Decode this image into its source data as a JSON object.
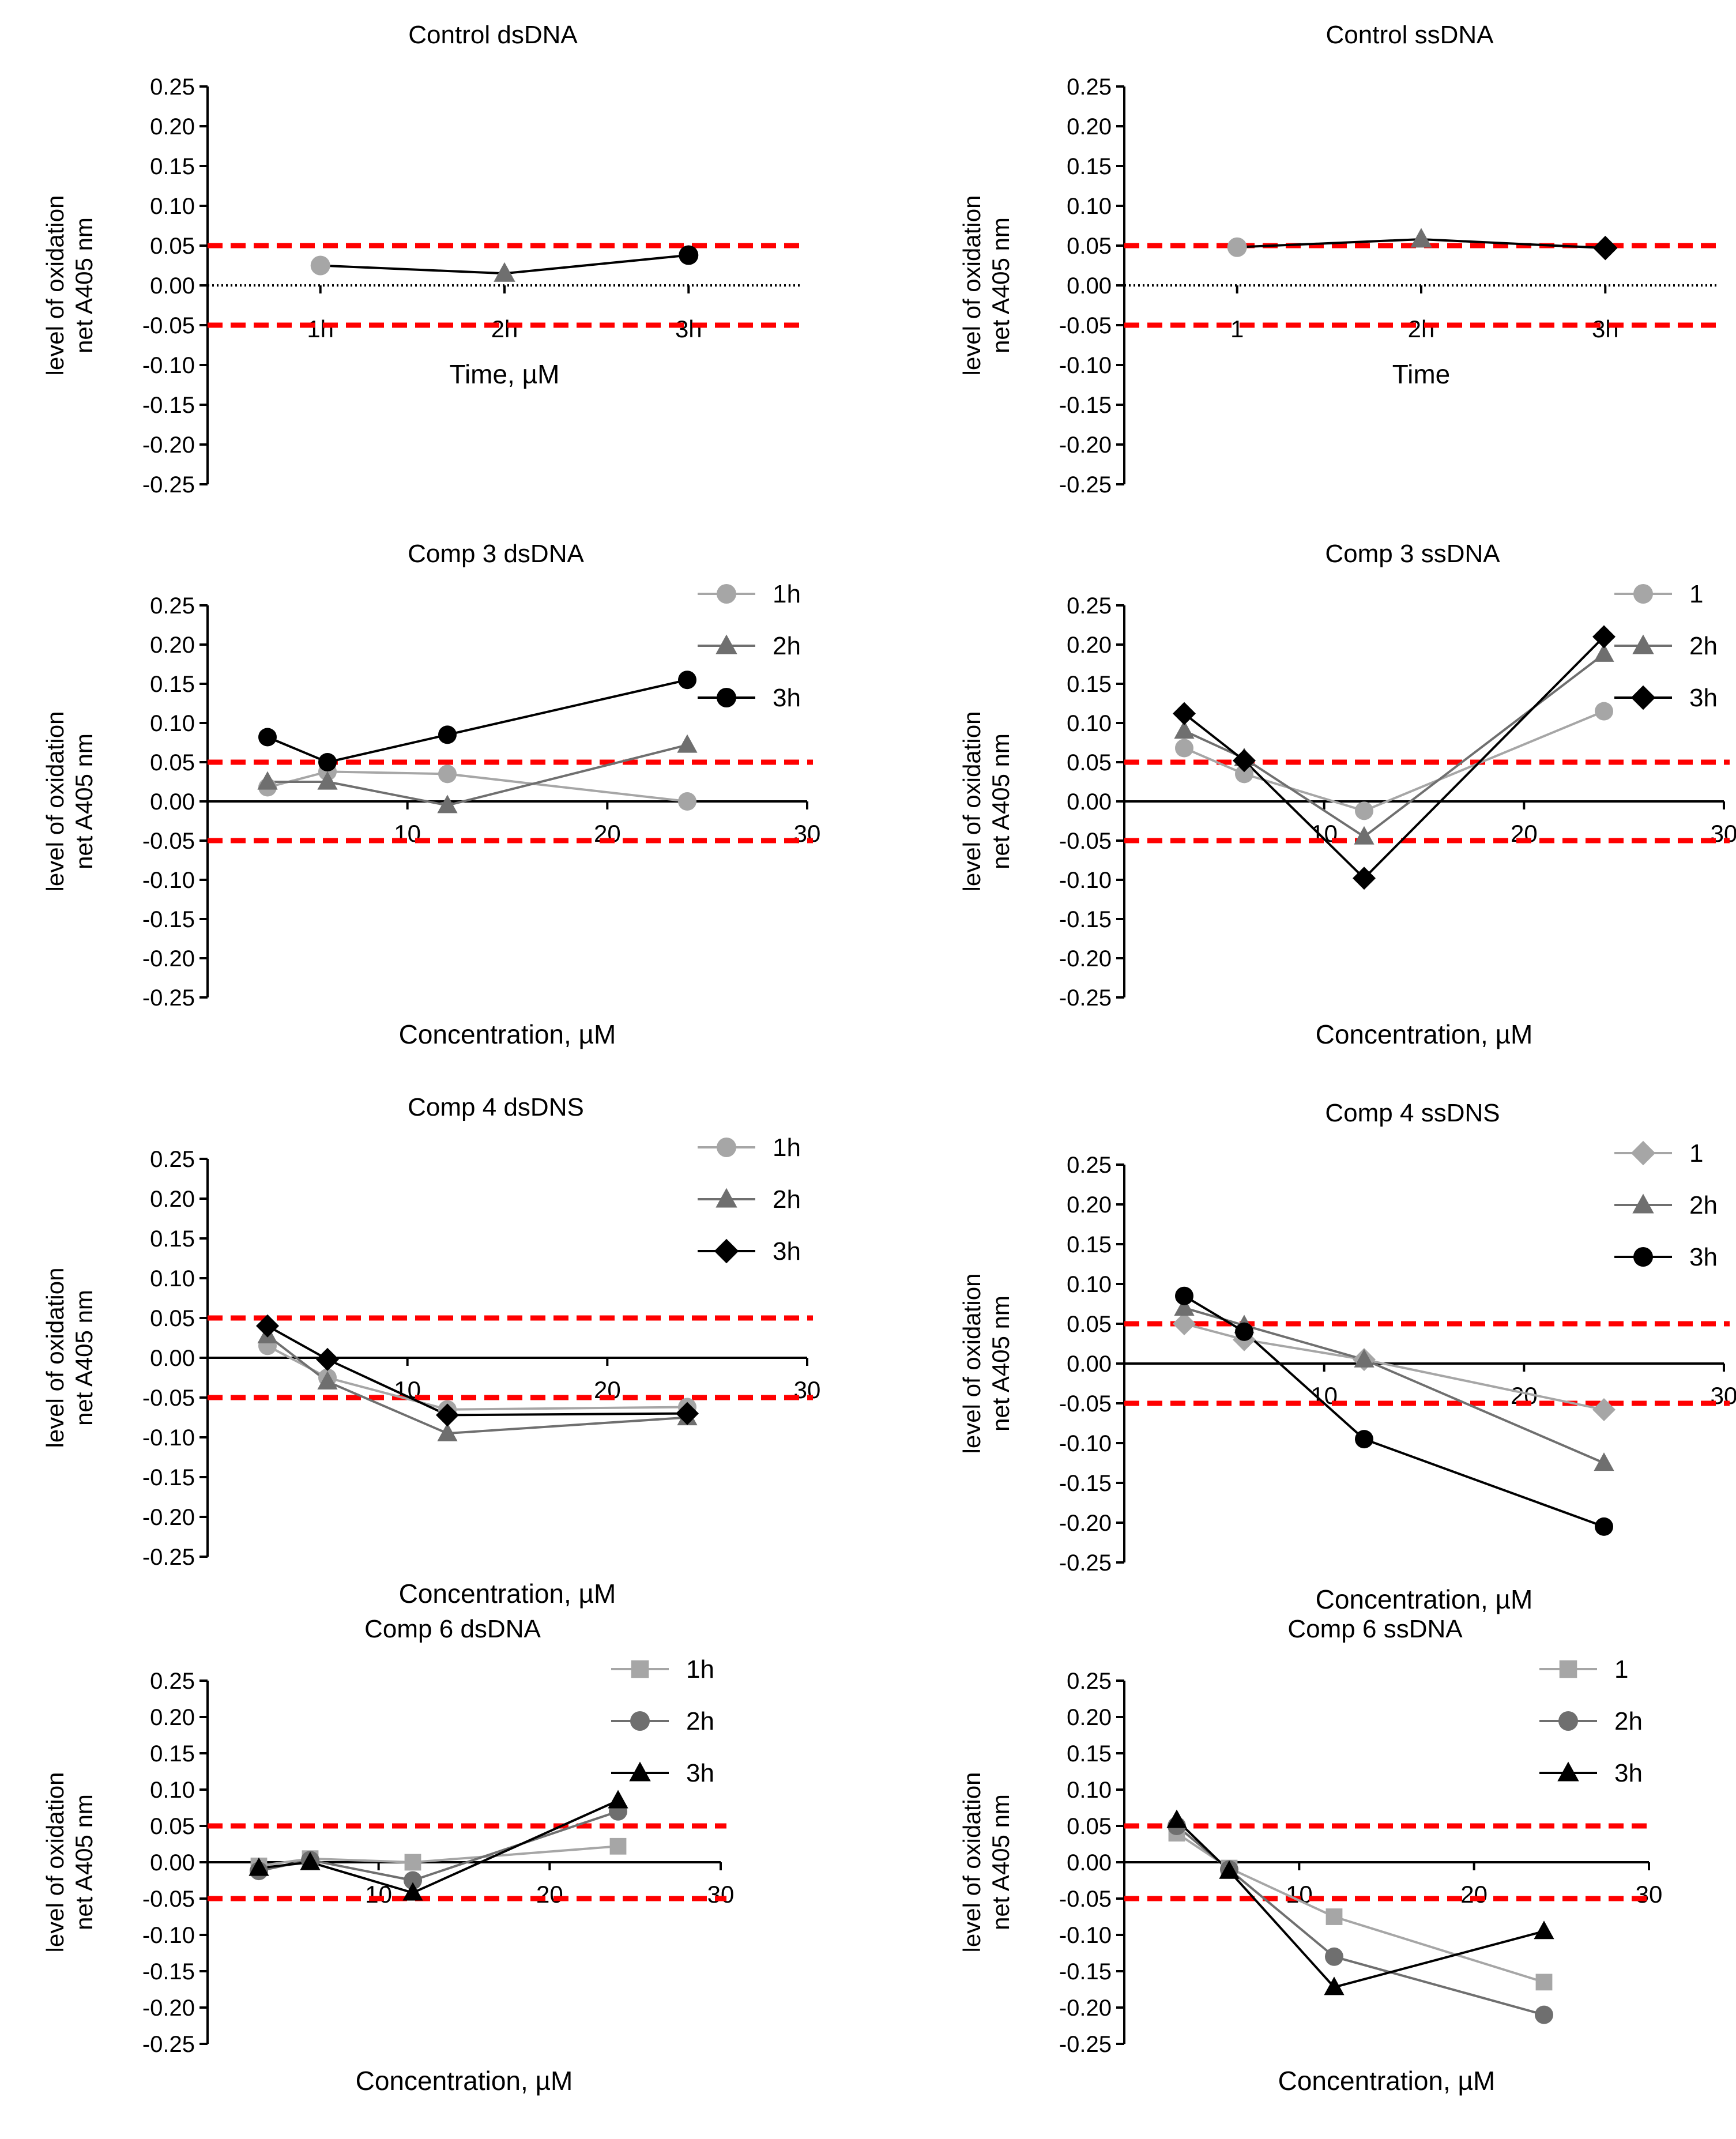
{
  "colors": {
    "threshold": "#ff0000",
    "series_1h": "#a6a6a6",
    "series_2h": "#6f6f6f",
    "series_3h": "#000000",
    "axis": "#000000"
  },
  "chart_data": [
    {
      "type": "line",
      "title": "Control dsDNA",
      "xlabel": "Time, µM",
      "ylabel": [
        "level of oxidation",
        "net A405 nm"
      ],
      "x_axis": "categorical",
      "categories": [
        "1h",
        "2h",
        "3h"
      ],
      "ylim": [
        -0.25,
        0.25
      ],
      "y_ticks": [
        "0.25",
        "0.20",
        "0.15",
        "0.10",
        "0.05",
        "0.00",
        "-0.05",
        "-0.10",
        "-0.15",
        "-0.20",
        "-0.25"
      ],
      "thresholds": [
        0.05,
        -0.05
      ],
      "zero_line": "dotted",
      "points": [
        {
          "x": "1h",
          "y": 0.025,
          "color": "#a6a6a6",
          "marker": "circle"
        },
        {
          "x": "2h",
          "y": 0.015,
          "color": "#6f6f6f",
          "marker": "triangle"
        },
        {
          "x": "3h",
          "y": 0.038,
          "color": "#000000",
          "marker": "circle"
        }
      ]
    },
    {
      "type": "line",
      "title": "Control ssDNA",
      "xlabel": "Time",
      "ylabel": [
        "level of oxidation",
        "net A405 nm"
      ],
      "x_axis": "categorical",
      "categories": [
        "1",
        "2h",
        "3h"
      ],
      "ylim": [
        -0.25,
        0.25
      ],
      "y_ticks": [
        "0.25",
        "0.20",
        "0.15",
        "0.10",
        "0.05",
        "0.00",
        "-0.05",
        "-0.10",
        "-0.15",
        "-0.20",
        "-0.25"
      ],
      "thresholds": [
        0.05,
        -0.05
      ],
      "zero_line": "dotted",
      "points": [
        {
          "x": "1",
          "y": 0.048,
          "color": "#a6a6a6",
          "marker": "circle"
        },
        {
          "x": "2h",
          "y": 0.058,
          "color": "#6f6f6f",
          "marker": "triangle"
        },
        {
          "x": "3h",
          "y": 0.047,
          "color": "#000000",
          "marker": "diamond"
        }
      ]
    },
    {
      "type": "line",
      "title": "Comp 3 dsDNA",
      "xlabel": "Concentration, µM",
      "ylabel": [
        "level of oxidation",
        "net A405 nm"
      ],
      "x_axis": "numeric",
      "xlim": [
        0,
        30
      ],
      "x_ticks": [
        "10",
        "20",
        "30"
      ],
      "ylim": [
        -0.25,
        0.25
      ],
      "y_ticks": [
        "0.25",
        "0.20",
        "0.15",
        "0.10",
        "0.05",
        "0.00",
        "-0.05",
        "-0.10",
        "-0.15",
        "-0.20",
        "-0.25"
      ],
      "thresholds": [
        0.05,
        -0.05
      ],
      "zero_line": "solid",
      "legend": [
        "1h",
        "2h",
        "3h"
      ],
      "series": [
        {
          "name": "1h",
          "color": "#a6a6a6",
          "marker": "circle",
          "x": [
            3,
            6,
            12,
            24
          ],
          "y": [
            0.018,
            0.038,
            0.035,
            0.0
          ]
        },
        {
          "name": "2h",
          "color": "#6f6f6f",
          "marker": "triangle",
          "x": [
            3,
            6,
            12,
            24
          ],
          "y": [
            0.025,
            0.025,
            -0.005,
            0.072
          ]
        },
        {
          "name": "3h",
          "color": "#000000",
          "marker": "circle",
          "x": [
            3,
            6,
            12,
            24
          ],
          "y": [
            0.082,
            0.05,
            0.085,
            0.155
          ]
        }
      ]
    },
    {
      "type": "line",
      "title": "Comp 3 ssDNA",
      "xlabel": "Concentration, µM",
      "ylabel": [
        "level of oxidation",
        "net A405 nm"
      ],
      "x_axis": "numeric",
      "xlim": [
        0,
        30
      ],
      "x_ticks": [
        "10",
        "20",
        "30"
      ],
      "ylim": [
        -0.25,
        0.25
      ],
      "y_ticks": [
        "0.25",
        "0.20",
        "0.15",
        "0.10",
        "0.05",
        "0.00",
        "-0.05",
        "-0.10",
        "-0.15",
        "-0.20",
        "-0.25"
      ],
      "thresholds": [
        0.05,
        -0.05
      ],
      "zero_line": "solid",
      "legend": [
        "1",
        "2h",
        "3h"
      ],
      "series": [
        {
          "name": "1",
          "color": "#a6a6a6",
          "marker": "circle",
          "x": [
            3,
            6,
            12,
            24
          ],
          "y": [
            0.068,
            0.035,
            -0.012,
            0.115
          ]
        },
        {
          "name": "2h",
          "color": "#6f6f6f",
          "marker": "triangle",
          "x": [
            3,
            6,
            12,
            24
          ],
          "y": [
            0.09,
            0.055,
            -0.045,
            0.188
          ]
        },
        {
          "name": "3h",
          "color": "#000000",
          "marker": "diamond",
          "x": [
            3,
            6,
            12,
            24
          ],
          "y": [
            0.112,
            0.052,
            -0.098,
            0.21
          ]
        }
      ]
    },
    {
      "type": "line",
      "title": "Comp 4 dsDNS",
      "xlabel": "Concentration, µM",
      "ylabel": [
        "level of oxidation",
        "net A405 nm"
      ],
      "x_axis": "numeric",
      "xlim": [
        0,
        30
      ],
      "x_ticks": [
        "10",
        "20",
        "30"
      ],
      "ylim": [
        -0.25,
        0.25
      ],
      "y_ticks": [
        "0.25",
        "0.20",
        "0.15",
        "0.10",
        "0.05",
        "0.00",
        "-0.05",
        "-0.10",
        "-0.15",
        "-0.20",
        "-0.25"
      ],
      "thresholds": [
        0.05,
        -0.05
      ],
      "zero_line": "solid",
      "legend": [
        "1h",
        "2h",
        "3h"
      ],
      "series": [
        {
          "name": "1h",
          "color": "#a6a6a6",
          "marker": "circle",
          "x": [
            3,
            6,
            12,
            24
          ],
          "y": [
            0.015,
            -0.025,
            -0.065,
            -0.062
          ]
        },
        {
          "name": "2h",
          "color": "#6f6f6f",
          "marker": "triangle",
          "x": [
            3,
            6,
            12,
            24
          ],
          "y": [
            0.028,
            -0.03,
            -0.095,
            -0.075
          ]
        },
        {
          "name": "3h",
          "color": "#000000",
          "marker": "diamond",
          "x": [
            3,
            6,
            12,
            24
          ],
          "y": [
            0.04,
            -0.002,
            -0.072,
            -0.07
          ]
        }
      ]
    },
    {
      "type": "line",
      "title": "Comp 4 ssDNS",
      "xlabel": "Concentration, µM",
      "ylabel": [
        "level of oxidation",
        "net A405 nm"
      ],
      "x_axis": "numeric",
      "xlim": [
        0,
        30
      ],
      "x_ticks": [
        "10",
        "20",
        "30"
      ],
      "ylim": [
        -0.25,
        0.25
      ],
      "y_ticks": [
        "0.25",
        "0.20",
        "0.15",
        "0.10",
        "0.05",
        "0.00",
        "-0.05",
        "-0.10",
        "-0.15",
        "-0.20",
        "-0.25"
      ],
      "thresholds": [
        0.05,
        -0.05
      ],
      "zero_line": "solid",
      "legend": [
        "1",
        "2h",
        "3h"
      ],
      "series": [
        {
          "name": "1",
          "color": "#a6a6a6",
          "marker": "diamond",
          "x": [
            3,
            6,
            12,
            24
          ],
          "y": [
            0.05,
            0.03,
            0.005,
            -0.058
          ]
        },
        {
          "name": "2h",
          "color": "#6f6f6f",
          "marker": "triangle",
          "x": [
            3,
            6,
            12,
            24
          ],
          "y": [
            0.07,
            0.048,
            0.005,
            -0.125
          ]
        },
        {
          "name": "3h",
          "color": "#000000",
          "marker": "circle",
          "x": [
            3,
            6,
            12,
            24
          ],
          "y": [
            0.085,
            0.04,
            -0.095,
            -0.205
          ]
        }
      ]
    },
    {
      "type": "line",
      "title": "Comp 6 dsDNA",
      "xlabel": "Concentration, µM",
      "ylabel": [
        "level of oxidation",
        "net A405 nm"
      ],
      "x_axis": "numeric",
      "xlim": [
        0,
        30
      ],
      "x_ticks": [
        "10",
        "20",
        "30"
      ],
      "ylim": [
        -0.25,
        0.25
      ],
      "y_ticks": [
        "0.25",
        "0.20",
        "0.15",
        "0.10",
        "0.05",
        "0.00",
        "-0.05",
        "-0.10",
        "-0.15",
        "-0.20",
        "-0.25"
      ],
      "thresholds": [
        0.05,
        -0.05
      ],
      "zero_line": "solid",
      "legend": [
        "1h",
        "2h",
        "3h"
      ],
      "series": [
        {
          "name": "1h",
          "color": "#a6a6a6",
          "marker": "square",
          "x": [
            3,
            6,
            12,
            24
          ],
          "y": [
            -0.005,
            0.005,
            0.0,
            0.022
          ]
        },
        {
          "name": "2h",
          "color": "#6f6f6f",
          "marker": "circle",
          "x": [
            3,
            6,
            12,
            24
          ],
          "y": [
            -0.012,
            0.003,
            -0.025,
            0.07
          ]
        },
        {
          "name": "3h",
          "color": "#000000",
          "marker": "triangle",
          "x": [
            3,
            6,
            12,
            24
          ],
          "y": [
            -0.008,
            0.0,
            -0.042,
            0.085
          ]
        }
      ]
    },
    {
      "type": "line",
      "title": "Comp 6 ssDNA",
      "xlabel": "Concentration, µM",
      "ylabel": [
        "level of oxidation",
        "net A405 nm"
      ],
      "x_axis": "numeric",
      "xlim": [
        0,
        30
      ],
      "x_ticks": [
        "10",
        "20",
        "30"
      ],
      "ylim": [
        -0.25,
        0.25
      ],
      "y_ticks": [
        "0.25",
        "0.20",
        "0.15",
        "0.10",
        "0.05",
        "0.00",
        "-0.05",
        "-0.10",
        "-0.15",
        "-0.20",
        "-0.25"
      ],
      "thresholds": [
        0.05,
        -0.05
      ],
      "zero_line": "solid",
      "legend": [
        "1",
        "2h",
        "3h"
      ],
      "series": [
        {
          "name": "1",
          "color": "#a6a6a6",
          "marker": "square",
          "x": [
            3,
            6,
            12,
            24
          ],
          "y": [
            0.04,
            -0.008,
            -0.075,
            -0.165
          ]
        },
        {
          "name": "2h",
          "color": "#6f6f6f",
          "marker": "circle",
          "x": [
            3,
            6,
            12,
            24
          ],
          "y": [
            0.05,
            -0.01,
            -0.13,
            -0.21
          ]
        },
        {
          "name": "3h",
          "color": "#000000",
          "marker": "triangle",
          "x": [
            3,
            6,
            12,
            24
          ],
          "y": [
            0.058,
            -0.012,
            -0.172,
            -0.095
          ]
        }
      ]
    }
  ]
}
